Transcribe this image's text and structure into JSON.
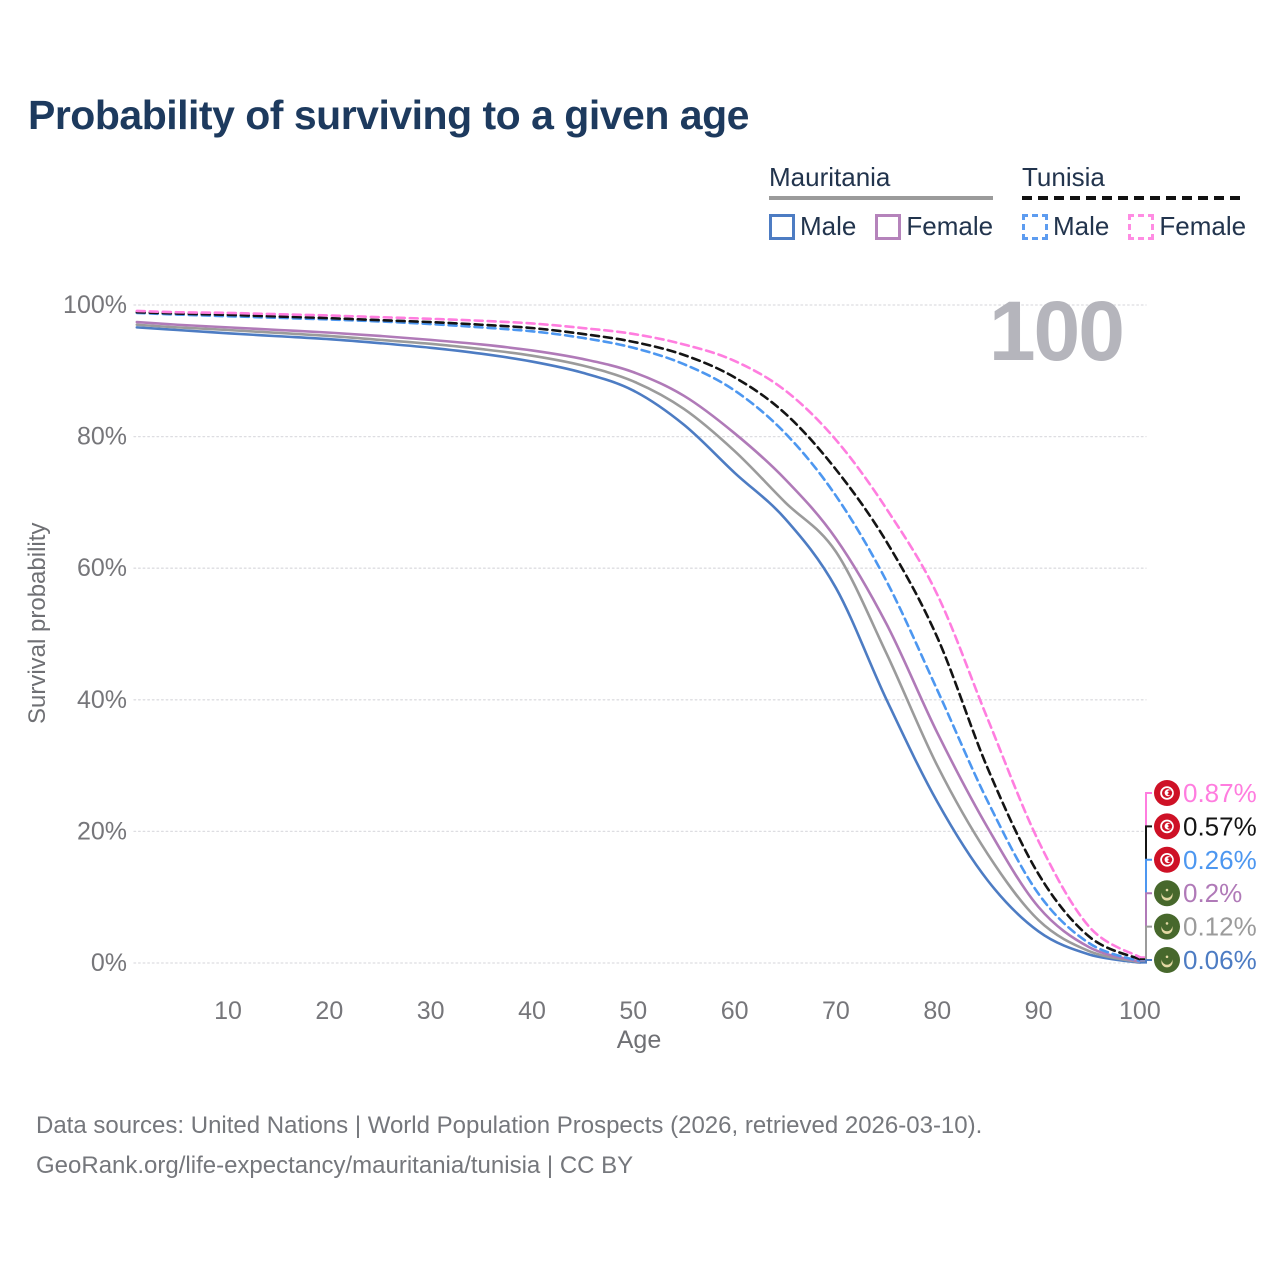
{
  "title": "Probability of surviving to a given age",
  "watermark": "100",
  "legend": {
    "groups": [
      {
        "name": "Mauritania",
        "line_style": "solid",
        "line_color": "#9b9b9b",
        "items": [
          {
            "label": "Male",
            "color": "#4d7cc3",
            "dashed": false
          },
          {
            "label": "Female",
            "color": "#b583bb",
            "dashed": false
          }
        ]
      },
      {
        "name": "Tunisia",
        "line_style": "dashed",
        "line_color": "#111111",
        "items": [
          {
            "label": "Male",
            "color": "#5d9cf0",
            "dashed": true
          },
          {
            "label": "Female",
            "color": "#ff8ce3",
            "dashed": true
          }
        ]
      }
    ]
  },
  "chart_data": {
    "type": "line",
    "title": "Probability of surviving to a given age",
    "xlabel": "Age",
    "ylabel": "Survival probability",
    "xlim": [
      1,
      100
    ],
    "ylim": [
      0,
      100
    ],
    "grid": "horizontal-dotted",
    "legend_position": "top-right",
    "x_ticks": [
      10,
      20,
      30,
      40,
      50,
      60,
      70,
      80,
      90,
      100
    ],
    "y_ticks": [
      {
        "v": 0,
        "label": "0%"
      },
      {
        "v": 20,
        "label": "20%"
      },
      {
        "v": 40,
        "label": "40%"
      },
      {
        "v": 60,
        "label": "60%"
      },
      {
        "v": 80,
        "label": "80%"
      },
      {
        "v": 100,
        "label": "100%"
      }
    ],
    "x": [
      1,
      5,
      10,
      15,
      20,
      25,
      30,
      35,
      40,
      45,
      50,
      55,
      60,
      65,
      70,
      75,
      80,
      85,
      90,
      95,
      100
    ],
    "series": [
      {
        "id": "mauritania-male",
        "name": "Mauritania Male",
        "color": "#4d7cc3",
        "dashed": false,
        "flag": "mauritania",
        "end_label": "0.06%",
        "values": [
          96.6,
          96.2,
          95.7,
          95.25,
          94.8,
          94.2,
          93.5,
          92.6,
          91.4,
          89.7,
          87.0,
          81.8,
          74.5,
          67.5,
          57.0,
          40.0,
          24.5,
          12.5,
          4.8,
          1.3,
          0.06
        ]
      },
      {
        "id": "mauritania-both",
        "name": "Mauritania",
        "color": "#9b9b9b",
        "dashed": false,
        "flag": "mauritania",
        "end_label": "0.12%",
        "values": [
          97.0,
          96.6,
          96.2,
          95.75,
          95.3,
          94.7,
          94.1,
          93.3,
          92.3,
          90.8,
          88.4,
          84.2,
          77.8,
          70.0,
          62.5,
          47.0,
          30.0,
          16.5,
          6.5,
          1.8,
          0.12
        ]
      },
      {
        "id": "mauritania-female",
        "name": "Mauritania Female",
        "color": "#b07ab8",
        "dashed": false,
        "flag": "mauritania",
        "end_label": "0.2%",
        "values": [
          97.4,
          97.0,
          96.6,
          96.2,
          95.8,
          95.3,
          94.7,
          94.0,
          93.1,
          91.8,
          89.8,
          86.2,
          80.5,
          73.5,
          64.5,
          51.5,
          35.0,
          20.5,
          8.5,
          2.4,
          0.2
        ]
      },
      {
        "id": "tunisia-male",
        "name": "Tunisia Male",
        "color": "#4d97f0",
        "dashed": true,
        "flag": "tunisia",
        "end_label": "0.26%",
        "values": [
          98.8,
          98.55,
          98.3,
          98.05,
          97.8,
          97.5,
          97.1,
          96.6,
          96.0,
          95.0,
          93.5,
          91.0,
          87.0,
          80.5,
          71.0,
          58.0,
          41.5,
          24.5,
          10.5,
          3.0,
          0.26
        ]
      },
      {
        "id": "tunisia-both",
        "name": "Tunisia",
        "color": "#141414",
        "dashed": true,
        "flag": "tunisia",
        "end_label": "0.57%",
        "values": [
          98.9,
          98.7,
          98.5,
          98.25,
          98.0,
          97.7,
          97.4,
          97.0,
          96.5,
          95.6,
          94.4,
          92.4,
          89.0,
          83.5,
          75.0,
          64.0,
          49.5,
          29.5,
          13.5,
          4.0,
          0.57
        ]
      },
      {
        "id": "tunisia-female",
        "name": "Tunisia Female",
        "color": "#ff7ddf",
        "dashed": true,
        "flag": "tunisia",
        "end_label": "0.87%",
        "values": [
          99.1,
          98.9,
          98.8,
          98.6,
          98.4,
          98.15,
          97.9,
          97.6,
          97.2,
          96.5,
          95.6,
          94.0,
          91.5,
          87.0,
          79.5,
          69.0,
          56.0,
          37.0,
          18.5,
          5.5,
          0.87
        ]
      }
    ],
    "flags": {
      "tunisia": {
        "bg": "#ce1126",
        "fg": "#ffffff"
      },
      "mauritania": {
        "bg": "#47682c",
        "fg": "#e4d8a4"
      }
    },
    "age_marker": "100"
  },
  "footer": {
    "line1": "Data sources: United Nations | World Population Prospects (2026, retrieved 2026-03-10).",
    "line2": "GeoRank.org/life-expectancy/mauritania/tunisia | CC BY"
  }
}
